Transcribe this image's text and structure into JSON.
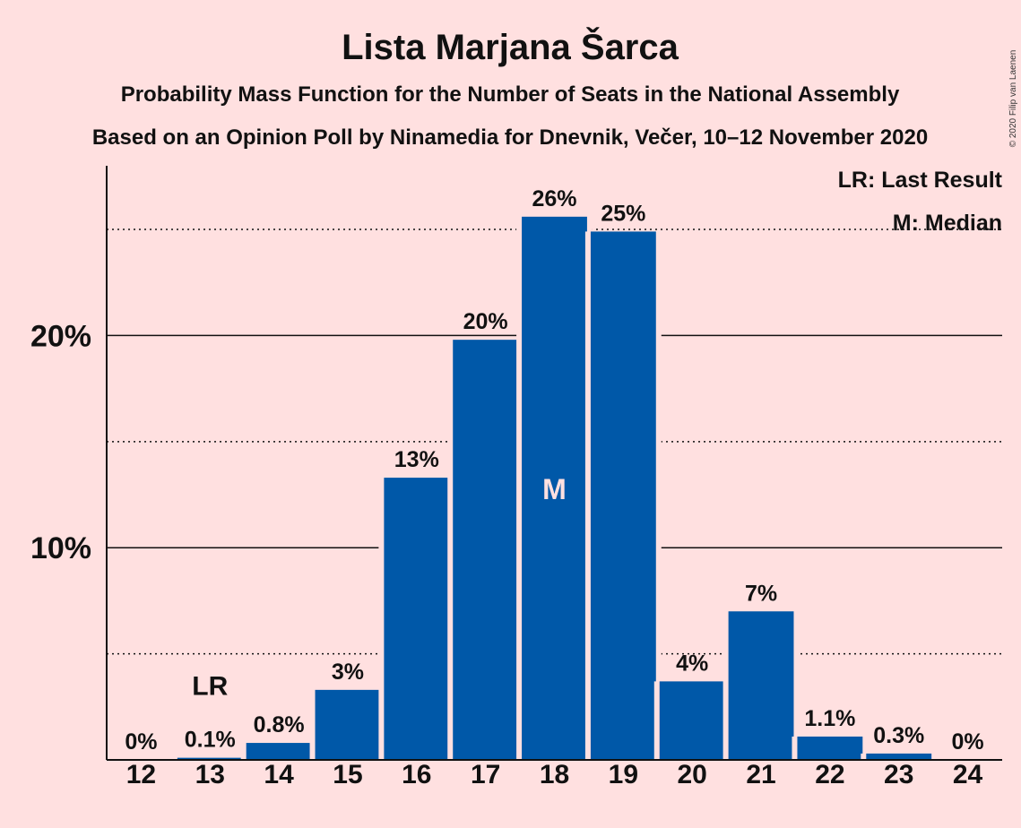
{
  "chart_data": {
    "type": "bar",
    "title": "Lista Marjana Šarca",
    "subtitle": "Probability Mass Function for the Number of Seats in the National Assembly",
    "subtitle2": "Based on an Opinion Poll by Ninamedia for Dnevnik, Večer, 10–12 November 2020",
    "categories": [
      "12",
      "13",
      "14",
      "15",
      "16",
      "17",
      "18",
      "19",
      "20",
      "21",
      "22",
      "23",
      "24"
    ],
    "values": [
      0,
      0.1,
      0.8,
      3.3,
      13.3,
      19.8,
      25.6,
      24.9,
      3.7,
      7.0,
      1.1,
      0.3,
      0
    ],
    "value_labels": [
      "0%",
      "0.1%",
      "0.8%",
      "3%",
      "13%",
      "20%",
      "26%",
      "25%",
      "4%",
      "7%",
      "1.1%",
      "0.3%",
      "0%"
    ],
    "ylim": [
      0,
      28
    ],
    "yticks": [
      10,
      20
    ],
    "ytick_labels": [
      "10%",
      "20%"
    ],
    "dotted_gridlines": [
      5,
      15,
      25
    ],
    "last_result_category": "13",
    "last_result_marker": "LR",
    "median_category": "18",
    "median_marker": "M",
    "legend": [
      "LR: Last Result",
      "M: Median"
    ],
    "legend_position": "top-right",
    "bar_color": "#0058a8",
    "background_color": "#ffe0e0",
    "copyright": "© 2020 Filip van Laenen"
  }
}
